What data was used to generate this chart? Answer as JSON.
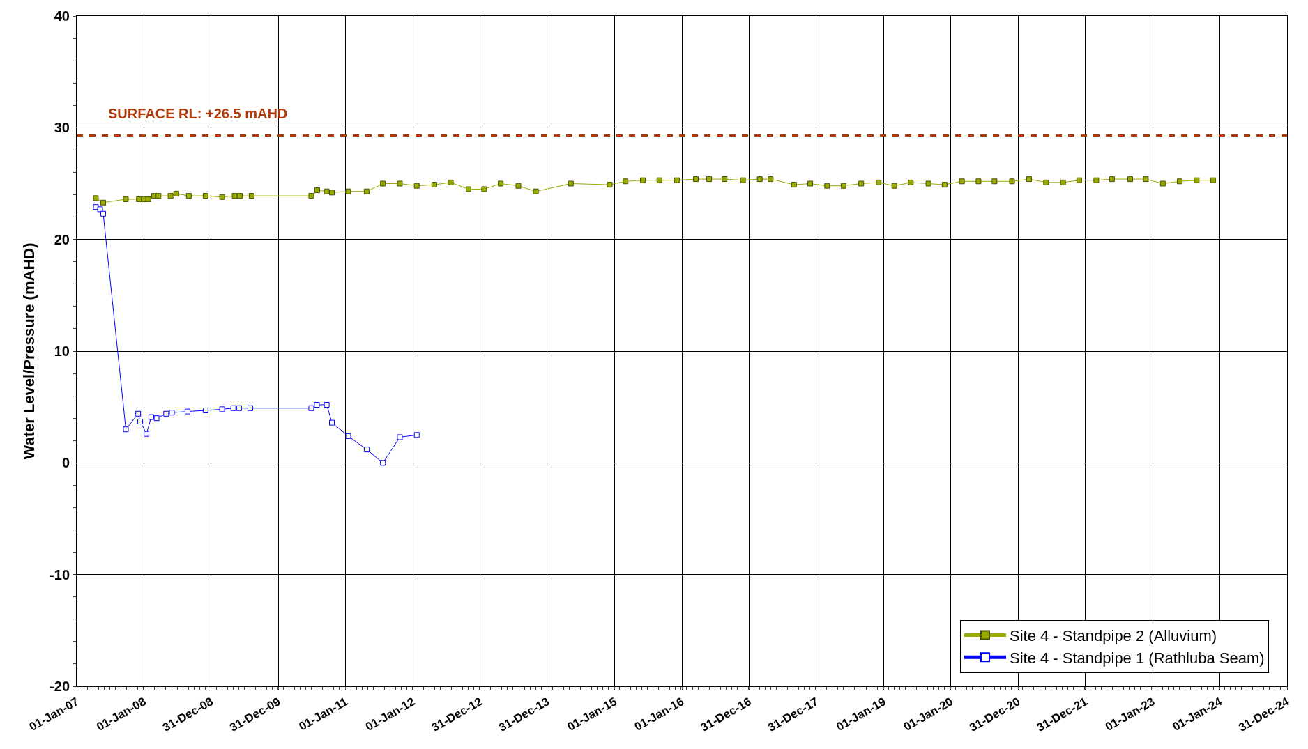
{
  "chart_data": {
    "type": "line",
    "ylabel": "Water Level/Pressure (mAHD)",
    "xlim": [
      "2007-01-01",
      "2024-12-31"
    ],
    "xticks": [
      {
        "value": "2007-01-01",
        "label": "01-Jan-07"
      },
      {
        "value": "2008-01-01",
        "label": "01-Jan-08"
      },
      {
        "value": "2008-12-31",
        "label": "31-Dec-08"
      },
      {
        "value": "2009-12-31",
        "label": "31-Dec-09"
      },
      {
        "value": "2011-01-01",
        "label": "01-Jan-11"
      },
      {
        "value": "2012-01-01",
        "label": "01-Jan-12"
      },
      {
        "value": "2012-12-31",
        "label": "31-Dec-12"
      },
      {
        "value": "2013-12-31",
        "label": "31-Dec-13"
      },
      {
        "value": "2015-01-01",
        "label": "01-Jan-15"
      },
      {
        "value": "2016-01-01",
        "label": "01-Jan-16"
      },
      {
        "value": "2016-12-31",
        "label": "31-Dec-16"
      },
      {
        "value": "2017-12-31",
        "label": "31-Dec-17"
      },
      {
        "value": "2019-01-01",
        "label": "01-Jan-19"
      },
      {
        "value": "2020-01-01",
        "label": "01-Jan-20"
      },
      {
        "value": "2020-12-31",
        "label": "31-Dec-20"
      },
      {
        "value": "2021-12-31",
        "label": "31-Dec-21"
      },
      {
        "value": "2023-01-01",
        "label": "01-Jan-23"
      },
      {
        "value": "2024-01-01",
        "label": "01-Jan-24"
      },
      {
        "value": "2024-12-31",
        "label": "31-Dec-24"
      }
    ],
    "ylim": [
      -20,
      40
    ],
    "yticks": [
      -20,
      -10,
      0,
      10,
      20,
      30,
      40
    ],
    "grid": true,
    "legend": "bottom right",
    "marker": "square",
    "line_style": "solid",
    "ref_lines": [
      {
        "axis": "y",
        "value": 29.3,
        "label": "SURFACE RL: +26.5 mAHD",
        "color": "#b03a0a",
        "line_style": "dashed"
      }
    ],
    "series": [
      {
        "name": "Site 4 - Standpipe 2 (Alluvium)",
        "color": "#9aab00",
        "x": [
          "2007-04-15",
          "2007-05-25",
          "2007-09-25",
          "2007-12-05",
          "2008-01-01",
          "2008-01-25",
          "2008-02-25",
          "2008-03-20",
          "2008-05-25",
          "2008-06-25",
          "2008-09-01",
          "2008-12-01",
          "2009-03-01",
          "2009-05-08",
          "2009-06-05",
          "2009-08-08",
          "2010-06-28",
          "2010-07-30",
          "2010-09-20",
          "2010-10-18",
          "2011-01-15",
          "2011-04-25",
          "2011-07-22",
          "2011-10-22",
          "2012-01-22",
          "2012-04-26",
          "2012-07-25",
          "2012-10-29",
          "2013-01-22",
          "2013-04-22",
          "2013-07-27",
          "2013-10-30",
          "2014-05-08",
          "2014-12-05",
          "2015-03-01",
          "2015-06-03",
          "2015-09-01",
          "2015-12-05",
          "2016-03-17",
          "2016-05-28",
          "2016-08-20",
          "2016-11-28",
          "2017-02-27",
          "2017-04-27",
          "2017-09-01",
          "2017-11-28",
          "2018-02-28",
          "2018-05-28",
          "2018-09-01",
          "2018-12-05",
          "2019-02-28",
          "2019-05-28",
          "2019-09-01",
          "2019-11-28",
          "2020-03-01",
          "2020-05-30",
          "2020-08-25",
          "2020-11-28",
          "2021-03-01",
          "2021-06-01",
          "2021-09-01",
          "2021-11-28",
          "2022-03-01",
          "2022-05-25",
          "2022-09-01",
          "2022-11-25",
          "2023-02-25",
          "2023-05-28",
          "2023-08-28",
          "2023-11-25"
        ],
        "values": [
          23.7,
          23.3,
          23.6,
          23.6,
          23.6,
          23.6,
          23.9,
          23.9,
          23.9,
          24.1,
          23.9,
          23.9,
          23.8,
          23.9,
          23.9,
          23.9,
          23.9,
          24.4,
          24.3,
          24.2,
          24.3,
          24.3,
          25.0,
          25.0,
          24.8,
          24.9,
          25.1,
          24.5,
          24.5,
          25.0,
          24.8,
          24.3,
          25.0,
          24.9,
          25.2,
          25.3,
          25.3,
          25.3,
          25.4,
          25.4,
          25.4,
          25.3,
          25.4,
          25.4,
          24.9,
          25.0,
          24.8,
          24.8,
          25.0,
          25.1,
          24.8,
          25.1,
          25.0,
          24.9,
          25.2,
          25.2,
          25.2,
          25.2,
          25.4,
          25.1,
          25.1,
          25.3,
          25.3,
          25.4,
          25.4,
          25.4,
          25.0,
          25.2,
          25.3,
          25.3
        ]
      },
      {
        "name": "Site 4 - Standpipe 1 (Rathluba Seam)",
        "color": "#0000ff",
        "x": [
          "2007-04-15",
          "2007-05-08",
          "2007-05-25",
          "2007-09-25",
          "2007-12-01",
          "2007-12-12",
          "2008-01-15",
          "2008-02-10",
          "2008-03-10",
          "2008-05-01",
          "2008-06-01",
          "2008-08-25",
          "2008-12-01",
          "2009-03-01",
          "2009-05-01",
          "2009-06-01",
          "2009-08-01",
          "2010-06-28",
          "2010-07-28",
          "2010-09-20",
          "2010-10-18",
          "2011-01-15",
          "2011-04-25",
          "2011-07-22",
          "2011-10-22",
          "2012-01-22"
        ],
        "values": [
          22.9,
          22.7,
          22.3,
          3.0,
          4.4,
          3.7,
          2.6,
          4.1,
          4.0,
          4.4,
          4.5,
          4.6,
          4.7,
          4.8,
          4.9,
          4.9,
          4.9,
          4.9,
          5.2,
          5.2,
          3.6,
          2.4,
          1.2,
          0.0,
          2.3,
          2.5
        ]
      }
    ]
  }
}
